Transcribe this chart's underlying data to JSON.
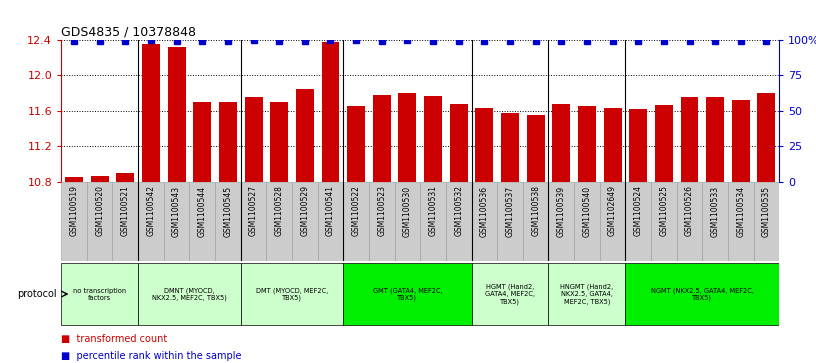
{
  "title": "GDS4835 / 10378848",
  "samples": [
    "GSM1100519",
    "GSM1100520",
    "GSM1100521",
    "GSM1100542",
    "GSM1100543",
    "GSM1100544",
    "GSM1100545",
    "GSM1100527",
    "GSM1100528",
    "GSM1100529",
    "GSM1100541",
    "GSM1100522",
    "GSM1100523",
    "GSM1100530",
    "GSM1100531",
    "GSM1100532",
    "GSM1100536",
    "GSM1100537",
    "GSM1100538",
    "GSM1100539",
    "GSM1100540",
    "GSM1102649",
    "GSM1100524",
    "GSM1100525",
    "GSM1100526",
    "GSM1100533",
    "GSM1100534",
    "GSM1100535"
  ],
  "bar_values": [
    10.85,
    10.86,
    10.9,
    12.35,
    12.32,
    11.7,
    11.7,
    11.75,
    11.7,
    11.85,
    12.38,
    11.65,
    11.78,
    11.8,
    11.77,
    11.68,
    11.63,
    11.57,
    11.55,
    11.68,
    11.65,
    11.63,
    11.62,
    11.67,
    11.75,
    11.75,
    11.72,
    11.8
  ],
  "percentile_values": [
    99,
    99,
    99,
    100,
    99,
    99,
    99,
    100,
    99,
    99,
    100,
    100,
    99,
    100,
    99,
    99,
    99,
    99,
    99,
    99,
    99,
    99,
    99,
    99,
    99,
    99,
    99,
    99
  ],
  "ylim_left": [
    10.8,
    12.4
  ],
  "ylim_right": [
    0,
    100
  ],
  "yticks_left": [
    10.8,
    11.2,
    11.6,
    12.0,
    12.4
  ],
  "yticks_right": [
    0,
    25,
    50,
    75,
    100
  ],
  "bar_color": "#CC0000",
  "dot_color": "#0000CC",
  "bg_color": "#FFFFFF",
  "protocols": [
    {
      "label": "no transcription\nfactors",
      "samples": [
        "GSM1100519",
        "GSM1100520",
        "GSM1100521"
      ],
      "color": "#CCFFCC"
    },
    {
      "label": "DMNT (MYOCD,\nNKX2.5, MEF2C, TBX5)",
      "samples": [
        "GSM1100542",
        "GSM1100543",
        "GSM1100544",
        "GSM1100545"
      ],
      "color": "#CCFFCC"
    },
    {
      "label": "DMT (MYOCD, MEF2C,\nTBX5)",
      "samples": [
        "GSM1100527",
        "GSM1100528",
        "GSM1100529",
        "GSM1100541"
      ],
      "color": "#CCFFCC"
    },
    {
      "label": "GMT (GATA4, MEF2C,\nTBX5)",
      "samples": [
        "GSM1100522",
        "GSM1100523",
        "GSM1100530",
        "GSM1100531",
        "GSM1100532"
      ],
      "color": "#00EE00"
    },
    {
      "label": "HGMT (Hand2,\nGATA4, MEF2C,\nTBX5)",
      "samples": [
        "GSM1100536",
        "GSM1100537",
        "GSM1100538"
      ],
      "color": "#CCFFCC"
    },
    {
      "label": "HNGMT (Hand2,\nNKX2.5, GATA4,\nMEF2C, TBX5)",
      "samples": [
        "GSM1100539",
        "GSM1100540",
        "GSM1102649"
      ],
      "color": "#CCFFCC"
    },
    {
      "label": "NGMT (NKX2.5, GATA4, MEF2C,\nTBX5)",
      "samples": [
        "GSM1100524",
        "GSM1100525",
        "GSM1100526",
        "GSM1100533",
        "GSM1100534",
        "GSM1100535"
      ],
      "color": "#00EE00"
    }
  ],
  "left_axis_color": "#CC0000",
  "right_axis_color": "#0000CC",
  "group_boundaries": [
    3,
    7,
    11,
    16,
    19,
    22
  ],
  "tickbox_color": "#CCCCCC",
  "tickbox_edge": "#999999"
}
